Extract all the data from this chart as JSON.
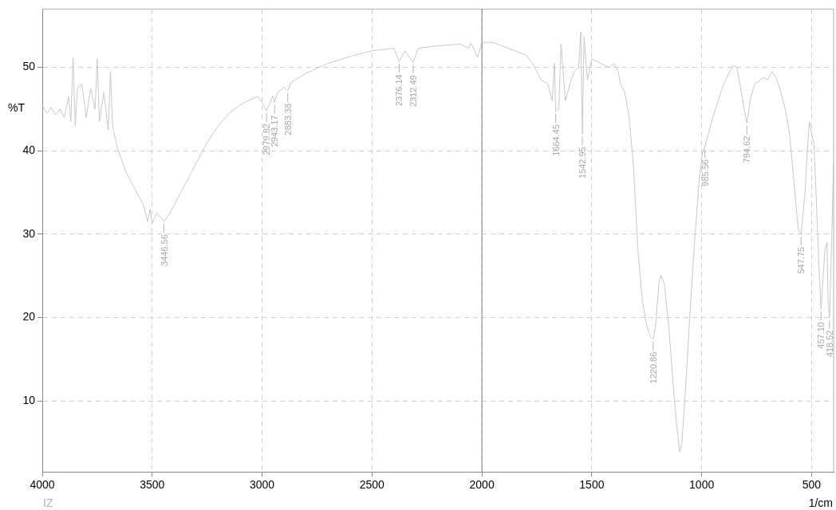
{
  "chart_data": {
    "type": "line",
    "ylabel": "%T",
    "xlabel": "1/cm",
    "xlim": [
      4000,
      400
    ],
    "xticks": [
      4000,
      3500,
      3000,
      2500,
      2000,
      1500,
      1000,
      500
    ],
    "ylim": [
      1.5,
      57
    ],
    "yticks": [
      10,
      20,
      30,
      40,
      50
    ],
    "grid": true,
    "legend": false,
    "marker": "none",
    "line_style": "solid",
    "ref_lines": [
      {
        "axis": "x",
        "value": 2000,
        "color": "#808080"
      }
    ],
    "series": [
      {
        "color": "#c8c8c8",
        "x": [
          4000,
          3980,
          3960,
          3940,
          3920,
          3900,
          3880,
          3870,
          3860,
          3850,
          3840,
          3820,
          3800,
          3780,
          3760,
          3750,
          3740,
          3720,
          3700,
          3690,
          3680,
          3660,
          3640,
          3620,
          3600,
          3580,
          3560,
          3540,
          3520,
          3510,
          3500,
          3480,
          3460,
          3446.56,
          3420,
          3400,
          3380,
          3350,
          3300,
          3250,
          3200,
          3150,
          3100,
          3050,
          3020,
          3000,
          2979.82,
          2960,
          2950,
          2943.17,
          2930,
          2900,
          2883.38,
          2870,
          2800,
          2700,
          2600,
          2500,
          2400,
          2376.14,
          2350,
          2312.49,
          2290,
          2200,
          2100,
          2060,
          2050,
          2040,
          2020,
          2000,
          1950,
          1900,
          1850,
          1800,
          1770,
          1750,
          1730,
          1700,
          1680,
          1670,
          1664.45,
          1650,
          1640,
          1620,
          1600,
          1580,
          1560,
          1550,
          1542.95,
          1535,
          1520,
          1500,
          1460,
          1420,
          1400,
          1380,
          1370,
          1350,
          1330,
          1310,
          1290,
          1270,
          1250,
          1235,
          1220.86,
          1210,
          1195,
          1186,
          1170,
          1150,
          1130,
          1110,
          1100,
          1090,
          1070,
          1050,
          1030,
          1010,
          995,
          985.56,
          970,
          950,
          900,
          860,
          840,
          820,
          794.62,
          780,
          760,
          720,
          700,
          680,
          660,
          640,
          620,
          600,
          580,
          560,
          547.75,
          530,
          520,
          510,
          500,
          490,
          480,
          465,
          457.1,
          450,
          440,
          430,
          425,
          418.52,
          410,
          400
        ],
        "values": [
          45.5,
          44.5,
          45.2,
          44.3,
          45,
          44,
          46.5,
          43.5,
          51.2,
          43,
          47.5,
          48,
          44,
          47.5,
          45,
          51,
          43.5,
          47,
          42.5,
          49.5,
          43,
          40.5,
          39,
          37.5,
          36.5,
          35.5,
          34.5,
          33.5,
          31.5,
          33,
          31.3,
          32.5,
          32,
          31.5,
          32.5,
          33.5,
          34.5,
          36,
          38.5,
          41,
          43,
          44.5,
          45.5,
          46.2,
          46.5,
          45.8,
          44.8,
          46,
          46.6,
          45.8,
          47,
          47.6,
          47.2,
          48.2,
          49.3,
          50.5,
          51.3,
          52,
          52.3,
          50.7,
          52,
          50.6,
          52.3,
          52.6,
          52.8,
          52.3,
          52.9,
          52.4,
          51.2,
          53,
          53,
          52.5,
          52,
          51.5,
          50.5,
          49.5,
          48.5,
          48,
          46,
          50.5,
          44.7,
          45,
          52.8,
          46,
          48,
          49.5,
          50,
          54.3,
          42,
          53.7,
          48.5,
          51,
          50.5,
          50,
          50.5,
          49.5,
          48,
          47,
          44,
          38,
          28,
          22,
          19,
          17.8,
          17.4,
          19,
          24,
          25.1,
          24,
          19,
          12,
          6,
          3.9,
          5,
          13,
          22,
          30,
          37,
          40,
          40.5,
          42,
          44,
          48,
          50.2,
          50,
          47,
          43.3,
          46,
          48,
          48.8,
          48.5,
          49.5,
          48.7,
          47,
          45,
          42,
          36,
          30.5,
          30,
          35,
          40,
          43.5,
          42,
          41,
          35,
          25,
          21,
          24,
          28,
          29,
          22,
          20,
          28,
          38.5
        ]
      }
    ],
    "annotations": [
      {
        "text": "3446.56",
        "x": 3446.56,
        "y": 31.5
      },
      {
        "text": "2979.82",
        "x": 2979.82,
        "y": 44.8
      },
      {
        "text": "2943.17",
        "x": 2943.17,
        "y": 45.8
      },
      {
        "text": "2883.38",
        "x": 2883.38,
        "y": 47.2
      },
      {
        "text": "2376.14",
        "x": 2376.14,
        "y": 50.7
      },
      {
        "text": "2312.49",
        "x": 2312.49,
        "y": 50.6
      },
      {
        "text": "1664.45",
        "x": 1664.45,
        "y": 44.7
      },
      {
        "text": "1542.95",
        "x": 1542.95,
        "y": 42
      },
      {
        "text": "1220.86",
        "x": 1220.86,
        "y": 17.4
      },
      {
        "text": "985.56",
        "x": 985.56,
        "y": 40.5
      },
      {
        "text": "794.62",
        "x": 794.62,
        "y": 43.3
      },
      {
        "text": "547.75",
        "x": 547.75,
        "y": 30
      },
      {
        "text": "457.10",
        "x": 457.1,
        "y": 21
      },
      {
        "text": "418.52",
        "x": 418.52,
        "y": 20
      },
      "IZ"
    ]
  }
}
